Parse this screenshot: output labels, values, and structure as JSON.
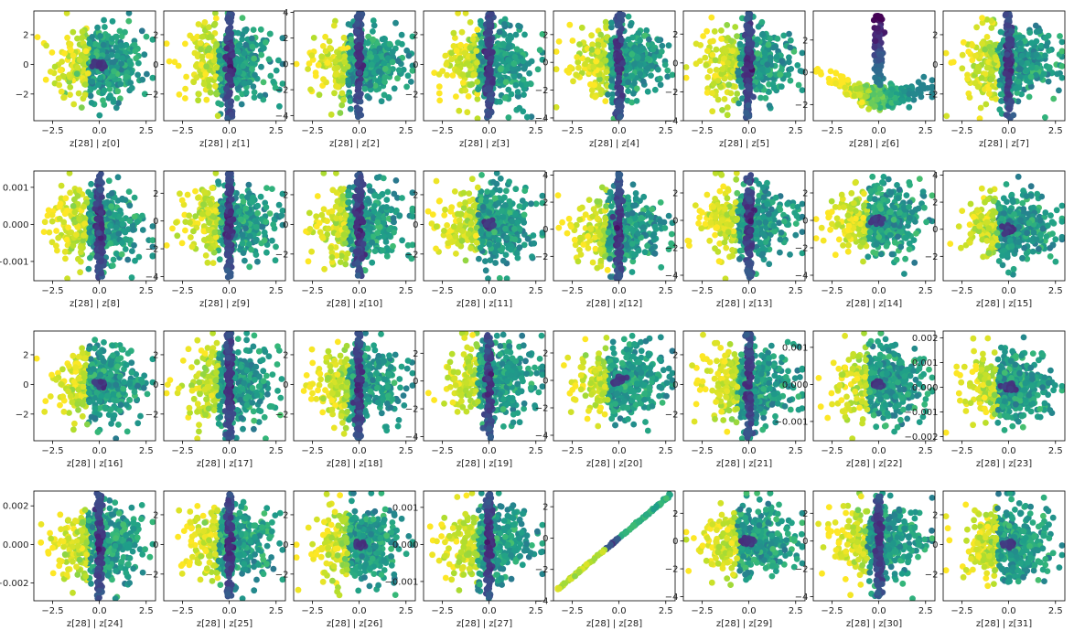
{
  "figure": {
    "rows": 4,
    "cols": 8,
    "colormap": "viridis"
  },
  "chart_data": [
    {
      "type": "scatter",
      "xlabel": "z[28] | z[0]",
      "xlim": [
        -3.5,
        3.0
      ],
      "ylim": [
        -3.8,
        3.6
      ],
      "xticks": [
        -2.5,
        0.0,
        2.5
      ],
      "xtick_labels": [
        "−2.5",
        "0.0",
        "2.5"
      ],
      "yticks": [
        -2,
        0,
        2
      ],
      "ytick_labels": [
        "−2",
        "0",
        "2"
      ],
      "pattern": "blob"
    },
    {
      "type": "scatter",
      "xlabel": "z[28] | z[1]",
      "xlim": [
        -3.5,
        3.0
      ],
      "ylim": [
        -3.8,
        3.6
      ],
      "xticks": [
        -2.5,
        0.0,
        2.5
      ],
      "xtick_labels": [
        "−2.5",
        "0.0",
        "2.5"
      ],
      "yticks": [
        -2,
        0,
        2
      ],
      "ytick_labels": [
        "−2",
        "0",
        "2"
      ],
      "pattern": "band"
    },
    {
      "type": "scatter",
      "xlabel": "z[28] | z[2]",
      "xlim": [
        -3.5,
        3.0
      ],
      "ylim": [
        -4.4,
        4.1
      ],
      "xticks": [
        -2.5,
        0.0,
        2.5
      ],
      "xtick_labels": [
        "−2.5",
        "0.0",
        "2.5"
      ],
      "yticks": [
        -4,
        -2,
        0,
        2,
        4
      ],
      "ytick_labels": [
        "−4",
        "−2",
        "0",
        "2",
        "4"
      ],
      "pattern": "band"
    },
    {
      "type": "scatter",
      "xlabel": "z[28] | z[3]",
      "xlim": [
        -3.5,
        3.0
      ],
      "ylim": [
        -3.8,
        3.6
      ],
      "xticks": [
        -2.5,
        0.0,
        2.5
      ],
      "xtick_labels": [
        "−2.5",
        "0.0",
        "2.5"
      ],
      "yticks": [
        -2,
        0,
        2
      ],
      "ytick_labels": [
        "−2",
        "0",
        "2"
      ],
      "pattern": "band"
    },
    {
      "type": "scatter",
      "xlabel": "z[28] | z[4]",
      "xlim": [
        -3.5,
        3.0
      ],
      "ylim": [
        -4.2,
        3.7
      ],
      "xticks": [
        -2.5,
        0.0,
        2.5
      ],
      "xtick_labels": [
        "−2.5",
        "0.0",
        "2.5"
      ],
      "yticks": [
        -4,
        -2,
        0,
        2
      ],
      "ytick_labels": [
        "−4",
        "−2",
        "0",
        "2"
      ],
      "pattern": "band"
    },
    {
      "type": "scatter",
      "xlabel": "z[28] | z[5]",
      "xlim": [
        -3.5,
        3.0
      ],
      "ylim": [
        -4.0,
        3.6
      ],
      "xticks": [
        -2.5,
        0.0,
        2.5
      ],
      "xtick_labels": [
        "−2.5",
        "0.0",
        "2.5"
      ],
      "yticks": [
        -4,
        -2,
        0,
        2
      ],
      "ytick_labels": [
        "−4",
        "−2",
        "0",
        "2"
      ],
      "pattern": "band"
    },
    {
      "type": "scatter",
      "xlabel": "z[28] | z[6]",
      "xlim": [
        -3.5,
        3.0
      ],
      "ylim": [
        -3.0,
        3.8
      ],
      "xticks": [
        -2.5,
        0.0,
        2.5
      ],
      "xtick_labels": [
        "−2.5",
        "0.0",
        "2.5"
      ],
      "yticks": [
        -2,
        0,
        2
      ],
      "ytick_labels": [
        "−2",
        "0",
        "2"
      ],
      "pattern": "vee"
    },
    {
      "type": "scatter",
      "xlabel": "z[28] | z[7]",
      "xlim": [
        -3.5,
        3.0
      ],
      "ylim": [
        -3.8,
        3.6
      ],
      "xticks": [
        -2.5,
        0.0,
        2.5
      ],
      "xtick_labels": [
        "−2.5",
        "0.0",
        "2.5"
      ],
      "yticks": [
        -2,
        0,
        2
      ],
      "ytick_labels": [
        "−2",
        "0",
        "2"
      ],
      "pattern": "band"
    },
    {
      "type": "scatter",
      "xlabel": "z[28] | z[8]",
      "xlim": [
        -3.5,
        3.0
      ],
      "ylim": [
        -3.8,
        3.6
      ],
      "xticks": [
        -2.5,
        0.0,
        2.5
      ],
      "xtick_labels": [
        "−2.5",
        "0.0",
        "2.5"
      ],
      "yticks": [
        -2.5,
        0,
        2.5
      ],
      "ytick_labels": [
        "−0.001",
        "0.000",
        "0.001"
      ],
      "pattern": "band"
    },
    {
      "type": "scatter",
      "xlabel": "z[28] | z[9]",
      "xlim": [
        -3.5,
        3.0
      ],
      "ylim": [
        -4.3,
        3.6
      ],
      "xticks": [
        -2.5,
        0.0,
        2.5
      ],
      "xtick_labels": [
        "−2.5",
        "0.0",
        "2.5"
      ],
      "yticks": [
        -4,
        -2,
        0,
        2
      ],
      "ytick_labels": [
        "−4",
        "−2",
        "0",
        "2"
      ],
      "pattern": "band"
    },
    {
      "type": "scatter",
      "xlabel": "z[28] | z[10]",
      "xlim": [
        -3.5,
        3.0
      ],
      "ylim": [
        -3.8,
        3.6
      ],
      "xticks": [
        -2.5,
        0.0,
        2.5
      ],
      "xtick_labels": [
        "−2.5",
        "0.0",
        "2.5"
      ],
      "yticks": [
        -2,
        0,
        2
      ],
      "ytick_labels": [
        "−2",
        "0",
        "2"
      ],
      "pattern": "band"
    },
    {
      "type": "scatter",
      "xlabel": "z[28] | z[11]",
      "xlim": [
        -3.5,
        3.0
      ],
      "ylim": [
        -3.8,
        3.6
      ],
      "xticks": [
        -2.5,
        0.0,
        2.5
      ],
      "xtick_labels": [
        "−2.5",
        "0.0",
        "2.5"
      ],
      "yticks": [
        -2,
        0,
        2
      ],
      "ytick_labels": [
        "−2",
        "0",
        "2"
      ],
      "pattern": "blob"
    },
    {
      "type": "scatter",
      "xlabel": "z[28] | z[12]",
      "xlim": [
        -3.5,
        3.0
      ],
      "ylim": [
        -3.8,
        4.3
      ],
      "xticks": [
        -2.5,
        0.0,
        2.5
      ],
      "xtick_labels": [
        "−2.5",
        "0.0",
        "2.5"
      ],
      "yticks": [
        -2,
        0,
        2,
        4
      ],
      "ytick_labels": [
        "−2",
        "0",
        "2",
        "4"
      ],
      "pattern": "band"
    },
    {
      "type": "scatter",
      "xlabel": "z[28] | z[13]",
      "xlim": [
        -3.5,
        3.0
      ],
      "ylim": [
        -4.4,
        3.6
      ],
      "xticks": [
        -2.5,
        0.0,
        2.5
      ],
      "xtick_labels": [
        "−2.5",
        "0.0",
        "2.5"
      ],
      "yticks": [
        -4,
        -2,
        0,
        2
      ],
      "ytick_labels": [
        "−4",
        "−2",
        "0",
        "2"
      ],
      "pattern": "band"
    },
    {
      "type": "scatter",
      "xlabel": "z[28] | z[14]",
      "xlim": [
        -3.5,
        3.0
      ],
      "ylim": [
        -4.4,
        3.6
      ],
      "xticks": [
        -2.5,
        0.0,
        2.5
      ],
      "xtick_labels": [
        "−2.5",
        "0.0",
        "2.5"
      ],
      "yticks": [
        -4,
        -2,
        0,
        2
      ],
      "ytick_labels": [
        "−4",
        "−2",
        "0",
        "2"
      ],
      "pattern": "blob"
    },
    {
      "type": "scatter",
      "xlabel": "z[28] | z[15]",
      "xlim": [
        -3.5,
        3.0
      ],
      "ylim": [
        -3.8,
        4.3
      ],
      "xticks": [
        -2.5,
        0.0,
        2.5
      ],
      "xtick_labels": [
        "−2.5",
        "0.0",
        "2.5"
      ],
      "yticks": [
        -2,
        0,
        2,
        4
      ],
      "ytick_labels": [
        "−2",
        "0",
        "2",
        "4"
      ],
      "pattern": "blob"
    },
    {
      "type": "scatter",
      "xlabel": "z[28] | z[16]",
      "xlim": [
        -3.5,
        3.0
      ],
      "ylim": [
        -3.8,
        3.6
      ],
      "xticks": [
        -2.5,
        0.0,
        2.5
      ],
      "xtick_labels": [
        "−2.5",
        "0.0",
        "2.5"
      ],
      "yticks": [
        -2,
        0,
        2
      ],
      "ytick_labels": [
        "−2",
        "0",
        "2"
      ],
      "pattern": "blob"
    },
    {
      "type": "scatter",
      "xlabel": "z[28] | z[17]",
      "xlim": [
        -3.5,
        3.0
      ],
      "ylim": [
        -3.8,
        3.6
      ],
      "xticks": [
        -2.5,
        0.0,
        2.5
      ],
      "xtick_labels": [
        "−2.5",
        "0.0",
        "2.5"
      ],
      "yticks": [
        -2,
        0,
        2
      ],
      "ytick_labels": [
        "−2",
        "0",
        "2"
      ],
      "pattern": "band"
    },
    {
      "type": "scatter",
      "xlabel": "z[28] | z[18]",
      "xlim": [
        -3.5,
        3.0
      ],
      "ylim": [
        -3.8,
        3.6
      ],
      "xticks": [
        -2.5,
        0.0,
        2.5
      ],
      "xtick_labels": [
        "−2.5",
        "0.0",
        "2.5"
      ],
      "yticks": [
        -2,
        0,
        2
      ],
      "ytick_labels": [
        "−2",
        "0",
        "2"
      ],
      "pattern": "band"
    },
    {
      "type": "scatter",
      "xlabel": "z[28] | z[19]",
      "xlim": [
        -3.5,
        3.0
      ],
      "ylim": [
        -4.3,
        3.6
      ],
      "xticks": [
        -2.5,
        0.0,
        2.5
      ],
      "xtick_labels": [
        "−2.5",
        "0.0",
        "2.5"
      ],
      "yticks": [
        -4,
        -2,
        0,
        2
      ],
      "ytick_labels": [
        "−4",
        "−2",
        "0",
        "2"
      ],
      "pattern": "band"
    },
    {
      "type": "scatter",
      "xlabel": "z[28] | z[20]",
      "xlim": [
        -3.5,
        3.0
      ],
      "ylim": [
        -4.4,
        3.6
      ],
      "xticks": [
        -2.5,
        0.0,
        2.5
      ],
      "xtick_labels": [
        "−2.5",
        "0.0",
        "2.5"
      ],
      "yticks": [
        -4,
        -2,
        0,
        2
      ],
      "ytick_labels": [
        "−4",
        "−2",
        "0",
        "2"
      ],
      "pattern": "blob"
    },
    {
      "type": "scatter",
      "xlabel": "z[28] | z[21]",
      "xlim": [
        -3.5,
        3.0
      ],
      "ylim": [
        -3.8,
        3.6
      ],
      "xticks": [
        -2.5,
        0.0,
        2.5
      ],
      "xtick_labels": [
        "−2.5",
        "0.0",
        "2.5"
      ],
      "yticks": [
        -2,
        0,
        2
      ],
      "ytick_labels": [
        "−2",
        "0",
        "2"
      ],
      "pattern": "band"
    },
    {
      "type": "scatter",
      "xlabel": "z[28] | z[22]",
      "xlim": [
        -3.5,
        3.0
      ],
      "ylim": [
        -3.8,
        3.6
      ],
      "xticks": [
        -2.5,
        0.0,
        2.5
      ],
      "xtick_labels": [
        "−2.5",
        "0.0",
        "2.5"
      ],
      "yticks": [
        -2.5,
        0,
        2.5
      ],
      "ytick_labels": [
        "−0.001",
        "0.000",
        "0.001"
      ],
      "pattern": "blob"
    },
    {
      "type": "scatter",
      "xlabel": "z[28] | z[23]",
      "xlim": [
        -3.5,
        3.0
      ],
      "ylim": [
        -3.9,
        4.1
      ],
      "xticks": [
        -2.5,
        0.0,
        2.5
      ],
      "xtick_labels": [
        "−2.5",
        "0.0",
        "2.5"
      ],
      "yticks": [
        -3.6,
        -1.8,
        0,
        1.8,
        3.6
      ],
      "ytick_labels": [
        "−0.002",
        "−0.001",
        "0.000",
        "0.001",
        "0.002"
      ],
      "pattern": "blob"
    },
    {
      "type": "scatter",
      "xlabel": "z[28] | z[24]",
      "xlim": [
        -3.5,
        3.0
      ],
      "ylim": [
        -3.8,
        3.6
      ],
      "xticks": [
        -2.5,
        0.0,
        2.5
      ],
      "xtick_labels": [
        "−2.5",
        "0.0",
        "2.5"
      ],
      "yticks": [
        -2.6,
        0,
        2.6
      ],
      "ytick_labels": [
        "−0.002",
        "0.000",
        "0.002"
      ],
      "pattern": "band"
    },
    {
      "type": "scatter",
      "xlabel": "z[28] | z[25]",
      "xlim": [
        -3.5,
        3.0
      ],
      "ylim": [
        -3.8,
        3.6
      ],
      "xticks": [
        -2.5,
        0.0,
        2.5
      ],
      "xtick_labels": [
        "−2.5",
        "0.0",
        "2.5"
      ],
      "yticks": [
        -2,
        0,
        2
      ],
      "ytick_labels": [
        "−2",
        "0",
        "2"
      ],
      "pattern": "band"
    },
    {
      "type": "scatter",
      "xlabel": "z[28] | z[26]",
      "xlim": [
        -3.5,
        3.0
      ],
      "ylim": [
        -3.8,
        3.6
      ],
      "xticks": [
        -2.5,
        0.0,
        2.5
      ],
      "xtick_labels": [
        "−2.5",
        "0.0",
        "2.5"
      ],
      "yticks": [
        -2,
        0,
        2
      ],
      "ytick_labels": [
        "−2",
        "0",
        "2"
      ],
      "pattern": "blob"
    },
    {
      "type": "scatter",
      "xlabel": "z[28] | z[27]",
      "xlim": [
        -3.5,
        3.0
      ],
      "ylim": [
        -3.8,
        3.6
      ],
      "xticks": [
        -2.5,
        0.0,
        2.5
      ],
      "xtick_labels": [
        "−2.5",
        "0.0",
        "2.5"
      ],
      "yticks": [
        -2.5,
        0,
        2.5
      ],
      "ytick_labels": [
        "−0.001",
        "0.000",
        "0.001"
      ],
      "pattern": "band"
    },
    {
      "type": "scatter",
      "xlabel": "z[28] | z[28]",
      "xlim": [
        -3.5,
        3.0
      ],
      "ylim": [
        -4.0,
        3.0
      ],
      "xticks": [
        -2.5,
        0.0,
        2.5
      ],
      "xtick_labels": [
        "−2.5",
        "0.0",
        "2.5"
      ],
      "yticks": [
        -4,
        -2,
        0,
        2
      ],
      "ytick_labels": [
        "−4",
        "−2",
        "0",
        "2"
      ],
      "pattern": "diag"
    },
    {
      "type": "scatter",
      "xlabel": "z[28] | z[29]",
      "xlim": [
        -3.5,
        3.0
      ],
      "ylim": [
        -4.3,
        3.6
      ],
      "xticks": [
        -2.5,
        0.0,
        2.5
      ],
      "xtick_labels": [
        "−2.5",
        "0.0",
        "2.5"
      ],
      "yticks": [
        -4,
        -2,
        0,
        2
      ],
      "ytick_labels": [
        "−4",
        "−2",
        "0",
        "2"
      ],
      "pattern": "blob"
    },
    {
      "type": "scatter",
      "xlabel": "z[28] | z[30]",
      "xlim": [
        -3.5,
        3.0
      ],
      "ylim": [
        -4.3,
        3.6
      ],
      "xticks": [
        -2.5,
        0.0,
        2.5
      ],
      "xtick_labels": [
        "−2.5",
        "0.0",
        "2.5"
      ],
      "yticks": [
        -4,
        -2,
        0,
        2
      ],
      "ytick_labels": [
        "−4",
        "−2",
        "0",
        "2"
      ],
      "pattern": "band"
    },
    {
      "type": "scatter",
      "xlabel": "z[28] | z[31]",
      "xlim": [
        -3.5,
        3.0
      ],
      "ylim": [
        -3.8,
        3.6
      ],
      "xticks": [
        -2.5,
        0.0,
        2.5
      ],
      "xtick_labels": [
        "−2.5",
        "0.0",
        "2.5"
      ],
      "yticks": [
        -2,
        0,
        2
      ],
      "ytick_labels": [
        "−2",
        "0",
        "2"
      ],
      "pattern": "blob"
    }
  ]
}
